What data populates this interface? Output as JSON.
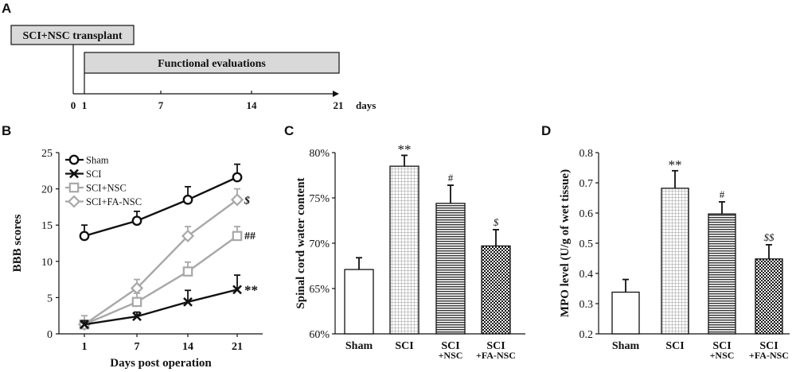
{
  "panels": {
    "A": {
      "letter": "A",
      "transplant_label": "SCI+NSC transplant",
      "functional_label": "Functional evaluations",
      "ticks": [
        "0",
        "1",
        "7",
        "14",
        "21"
      ],
      "unit": "days"
    },
    "B": {
      "letter": "B"
    },
    "C": {
      "letter": "C"
    },
    "D": {
      "letter": "D"
    }
  },
  "colors": {
    "black": "#111111",
    "gray": "#a8a8a8",
    "light_gray": "#d9d9d9"
  },
  "chart_data": [
    {
      "id": "B",
      "type": "line",
      "xlabel": "Days post operation",
      "ylabel": "BBB scores",
      "categories": [
        "1",
        "7",
        "14",
        "21"
      ],
      "ylim": [
        0,
        25
      ],
      "yticks": [
        0,
        5,
        10,
        15,
        20,
        25
      ],
      "legend_position": "top-left",
      "series": [
        {
          "name": "Sham",
          "marker": "circle",
          "color": "#111111",
          "values": [
            13.5,
            15.6,
            18.5,
            21.6
          ],
          "errors": [
            1.5,
            1.3,
            1.8,
            1.8
          ],
          "annotation": ""
        },
        {
          "name": "SCI",
          "marker": "x",
          "color": "#111111",
          "values": [
            1.3,
            2.4,
            4.4,
            6.1
          ],
          "errors": [
            0.5,
            0.6,
            1.6,
            2.0
          ],
          "annotation": "**"
        },
        {
          "name": "SCI+NSC",
          "marker": "square",
          "color": "#a8a8a8",
          "values": [
            1.3,
            4.4,
            8.6,
            13.5
          ],
          "errors": [
            1.2,
            1.2,
            1.3,
            1.3
          ],
          "annotation": "##"
        },
        {
          "name": "SCI+FA-NSC",
          "marker": "diamond",
          "color": "#a8a8a8",
          "values": [
            1.3,
            6.3,
            13.5,
            18.5
          ],
          "errors": [
            0.5,
            1.2,
            1.3,
            1.5
          ],
          "annotation": "$"
        }
      ]
    },
    {
      "id": "C",
      "type": "bar",
      "ylabel": "Spinal cord water content",
      "categories": [
        [
          "Sham"
        ],
        [
          "SCI"
        ],
        [
          "SCI",
          "+NSC"
        ],
        [
          "SCI",
          "+FA-NSC"
        ]
      ],
      "values": [
        67.1,
        78.5,
        74.4,
        69.7
      ],
      "errors": [
        1.3,
        1.2,
        2.0,
        1.8
      ],
      "patterns": [
        "none",
        "grid",
        "hstripe",
        "check"
      ],
      "annotations": [
        "",
        "**",
        "#",
        "$"
      ],
      "ylim": [
        60,
        80
      ],
      "yticks": [
        "60%",
        "65%",
        "70%",
        "75%",
        "80%"
      ],
      "ytick_values": [
        60,
        65,
        70,
        75,
        80
      ]
    },
    {
      "id": "D",
      "type": "bar",
      "ylabel": "MPO level (U/g of wet tissue)",
      "categories": [
        [
          "Sham"
        ],
        [
          "SCI"
        ],
        [
          "SCI",
          "+NSC"
        ],
        [
          "SCI",
          "+FA-NSC"
        ]
      ],
      "values": [
        0.338,
        0.682,
        0.597,
        0.448
      ],
      "errors": [
        0.042,
        0.058,
        0.04,
        0.047
      ],
      "patterns": [
        "none",
        "grid",
        "hstripe",
        "check"
      ],
      "annotations": [
        "",
        "**",
        "#",
        "$$"
      ],
      "ylim": [
        0.2,
        0.8
      ],
      "yticks": [
        "0.2",
        "0.3",
        "0.4",
        "0.5",
        "0.6",
        "0.7",
        "0.8"
      ],
      "ytick_values": [
        0.2,
        0.3,
        0.4,
        0.5,
        0.6,
        0.7,
        0.8
      ]
    }
  ]
}
